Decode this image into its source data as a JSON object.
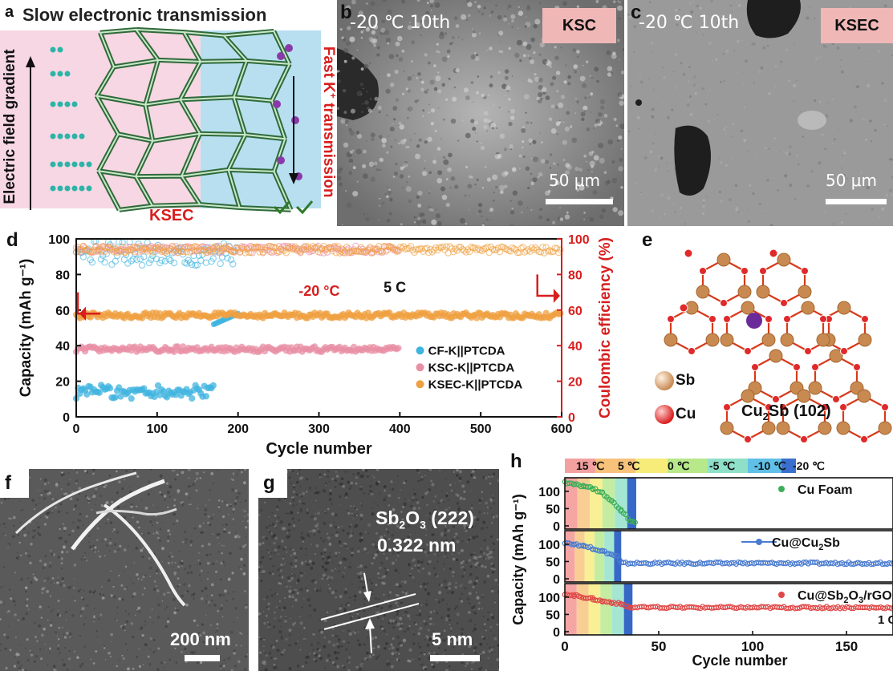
{
  "panel_a": {
    "label": "a",
    "title": "Slow electronic transmission",
    "left_axis": "Electric field gradient",
    "right_axis_pre": "Fast K",
    "right_axis_sup": "+",
    "right_axis_post": " transmission",
    "bottom_label": "KSEC"
  },
  "panel_b": {
    "label": "b",
    "temp": "-20 ℃  10th",
    "badge": "KSC",
    "scale": "50 μm"
  },
  "panel_c": {
    "label": "c",
    "temp": "-20 ℃  10th",
    "badge": "KSEC",
    "scale": "50 μm"
  },
  "panel_d": {
    "label": "d",
    "condition_temp": "-20 °C",
    "condition_rate": "5 C",
    "chart_data": {
      "type": "scatter",
      "xlabel": "Cycle number",
      "ylabel_left": "Capacity (mAh g⁻¹)",
      "ylabel_right": "Coulombic efficiency (%)",
      "xlim": [
        0,
        600
      ],
      "ylim_left": [
        0,
        100
      ],
      "ylim_right": [
        0,
        100
      ],
      "xticks": [
        "0",
        "100",
        "200",
        "300",
        "400",
        "500",
        "600"
      ],
      "yticks_left": [
        "0",
        "20",
        "40",
        "60",
        "80",
        "100"
      ],
      "yticks_right": [
        "0",
        "20",
        "40",
        "60",
        "80",
        "100"
      ],
      "series": [
        {
          "name": "CF-K||PTCDA",
          "color": "#3fb4e0",
          "capacity": {
            "x": [
              0,
              170
            ],
            "y": [
              14,
              14
            ]
          },
          "capacity_tail": {
            "x": [
              170,
              200
            ],
            "y": [
              52,
              58
            ]
          },
          "ce": {
            "x": [
              0,
              200
            ],
            "y": [
              98,
              98
            ]
          }
        },
        {
          "name": "KSC-K||PTCDA",
          "color": "#e98fa5",
          "capacity": {
            "x": [
              0,
              400
            ],
            "y": [
              38,
              38
            ]
          },
          "ce": {
            "x": [
              0,
              400
            ],
            "y": [
              100,
              100
            ]
          }
        },
        {
          "name": "KSEC-K||PTCDA",
          "color": "#f0a040",
          "capacity": {
            "x": [
              0,
              600
            ],
            "y": [
              57,
              57
            ]
          },
          "ce": {
            "x": [
              0,
              600
            ],
            "y": [
              100,
              100
            ]
          }
        }
      ]
    }
  },
  "panel_e": {
    "label": "e",
    "legend_sb": "Sb",
    "legend_cu": "Cu",
    "title_main": "Cu",
    "title_sub": "2",
    "title_rest": "Sb (102)"
  },
  "panel_f": {
    "label": "f",
    "scale": "200 nm"
  },
  "panel_g": {
    "label": "g",
    "plane_main": "Sb",
    "plane_sub1": "2",
    "plane_mid": "O",
    "plane_sub2": "3",
    "plane_rest": " (222)",
    "spacing": "0.322 nm",
    "scale": "5 nm"
  },
  "panel_h": {
    "label": "h",
    "bands": [
      "15 ℃",
      "5 ℃",
      "0 ℃",
      "-5 ℃",
      "-10 ℃",
      "-20 ℃"
    ],
    "chart_data": {
      "type": "scatter",
      "xlabel": "Cycle number",
      "ylabel": "Capacity (mAh g⁻¹)",
      "xlim": [
        0,
        180
      ],
      "xticks": [
        "0",
        "50",
        "100",
        "150"
      ],
      "yticks": [
        "0",
        "50",
        "100"
      ],
      "series": [
        {
          "name": "Cu Foam",
          "color": "#3dae5a",
          "x": [
            0,
            5,
            10,
            15,
            20,
            25,
            30,
            35,
            38
          ],
          "y": [
            125,
            120,
            115,
            108,
            95,
            70,
            45,
            15,
            5
          ]
        },
        {
          "name": "Cu@Cu2Sb",
          "name_parts": [
            "Cu@Cu",
            "2",
            "Sb"
          ],
          "color": "#4a7bd0",
          "x": [
            0,
            5,
            10,
            15,
            20,
            25,
            28,
            30,
            180
          ],
          "y": [
            105,
            100,
            95,
            88,
            80,
            70,
            65,
            45,
            45
          ]
        },
        {
          "name": "Cu@Sb2O3/rGO",
          "name_parts": [
            "Cu@Sb",
            "2",
            "O",
            "3",
            "/rGO"
          ],
          "color": "#e04848",
          "x": [
            0,
            5,
            10,
            15,
            20,
            25,
            30,
            35,
            180
          ],
          "y": [
            110,
            105,
            100,
            95,
            88,
            85,
            80,
            70,
            70
          ]
        }
      ]
    },
    "corner_text": "1 C"
  }
}
